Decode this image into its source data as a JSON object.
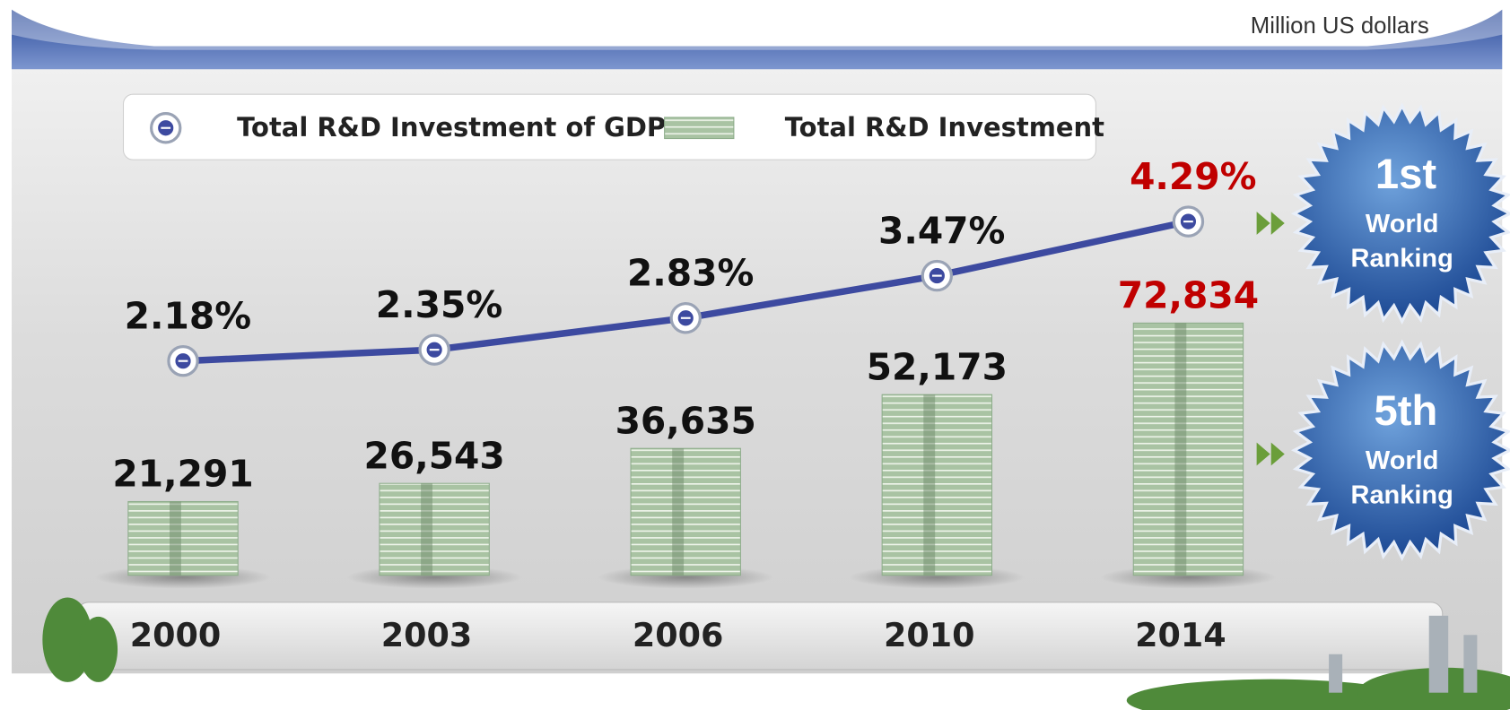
{
  "chart_data": {
    "type": "bar",
    "unit_note": "Million US dollars",
    "categories": [
      "2000",
      "2003",
      "2006",
      "2010",
      "2014"
    ],
    "series": [
      {
        "name": "Total R&D Investment of GDP",
        "type": "line",
        "color": "#3d4aa0",
        "values": [
          2.18,
          2.35,
          2.83,
          3.47,
          4.29
        ],
        "value_labels": [
          "2.18%",
          "2.35%",
          "2.83%",
          "3.47%",
          "4.29%"
        ],
        "value_label_colors": [
          "#111111",
          "#111111",
          "#111111",
          "#111111",
          "#c00000"
        ]
      },
      {
        "name": "Total R&D Investment",
        "type": "bar",
        "color": "#8fae8c",
        "values": [
          21291,
          26543,
          36635,
          52173,
          72834
        ],
        "value_labels": [
          "21,291",
          "26,543",
          "36,635",
          "52,173",
          "72,834"
        ],
        "value_label_colors": [
          "#111111",
          "#111111",
          "#111111",
          "#111111",
          "#c00000"
        ]
      }
    ],
    "badges": [
      {
        "rank": "1st",
        "line1": "World",
        "line2": "Ranking"
      },
      {
        "rank": "5th",
        "line1": "World",
        "line2": "Ranking"
      }
    ]
  }
}
